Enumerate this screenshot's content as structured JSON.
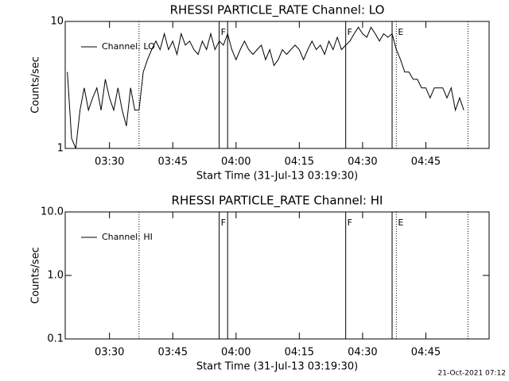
{
  "chart_data": [
    {
      "type": "line",
      "title": "RHESSI PARTICLE_RATE Channel: LO",
      "xlabel": "Start Time (31-Jul-13 03:19:30)",
      "ylabel": "Counts/sec",
      "log_y": true,
      "ylim": [
        1,
        10
      ],
      "yticks": [
        1,
        10
      ],
      "xlim": [
        "03:19:30",
        "05:00"
      ],
      "xticks": [
        "03:30",
        "03:45",
        "04:00",
        "04:15",
        "04:30",
        "04:45"
      ],
      "legend": "upper left",
      "x": [
        "03:20",
        "03:21",
        "03:22",
        "03:23",
        "03:24",
        "03:25",
        "03:26",
        "03:27",
        "03:28",
        "03:29",
        "03:30",
        "03:31",
        "03:32",
        "03:33",
        "03:34",
        "03:35",
        "03:36",
        "03:37",
        "03:38",
        "03:39",
        "03:40",
        "03:41",
        "03:42",
        "03:43",
        "03:44",
        "03:45",
        "03:46",
        "03:47",
        "03:48",
        "03:49",
        "03:50",
        "03:51",
        "03:52",
        "03:53",
        "03:54",
        "03:55",
        "03:56",
        "03:57",
        "03:58",
        "03:59",
        "04:00",
        "04:01",
        "04:02",
        "04:03",
        "04:04",
        "04:05",
        "04:06",
        "04:07",
        "04:08",
        "04:09",
        "04:10",
        "04:11",
        "04:12",
        "04:13",
        "04:14",
        "04:15",
        "04:16",
        "04:17",
        "04:18",
        "04:19",
        "04:20",
        "04:21",
        "04:22",
        "04:23",
        "04:24",
        "04:25",
        "04:26",
        "04:27",
        "04:28",
        "04:29",
        "04:30",
        "04:31",
        "04:32",
        "04:33",
        "04:34",
        "04:35",
        "04:36",
        "04:37",
        "04:38",
        "04:39",
        "04:40",
        "04:41",
        "04:42",
        "04:43",
        "04:44",
        "04:45",
        "04:46",
        "04:47",
        "04:48",
        "04:49",
        "04:50",
        "04:51",
        "04:52",
        "04:53",
        "04:54"
      ],
      "series": [
        {
          "name": "Channel: LO",
          "color": "#000000",
          "values": [
            4,
            1.2,
            1,
            2,
            3,
            2,
            2.5,
            3,
            2,
            3.5,
            2.5,
            2,
            3,
            2,
            1.5,
            3,
            2,
            2,
            4,
            5,
            6,
            7,
            6,
            8,
            6,
            7,
            5.5,
            8,
            6.5,
            7,
            6,
            5.5,
            7,
            6,
            8,
            6,
            7,
            6.5,
            8,
            6,
            5,
            6,
            7,
            6,
            5.5,
            6,
            6.5,
            5,
            6,
            4.5,
            5,
            6,
            5.5,
            6,
            6.5,
            6,
            5,
            6,
            7,
            6,
            6.5,
            5.5,
            7,
            6,
            7.5,
            6,
            6.5,
            7,
            8,
            9,
            8,
            7.5,
            9,
            8,
            7,
            8,
            7.5,
            8,
            6,
            5,
            4,
            4,
            3.5,
            3.5,
            3,
            3,
            2.5,
            3,
            3,
            3,
            2.5,
            3,
            2,
            2.5,
            2
          ]
        }
      ],
      "flags": [
        {
          "x": "03:37",
          "style": "dotted"
        },
        {
          "x": "03:56",
          "style": "solid",
          "label": "F"
        },
        {
          "x": "03:58",
          "style": "solid"
        },
        {
          "x": "04:26",
          "style": "solid",
          "label": "F"
        },
        {
          "x": "04:37",
          "style": "solid"
        },
        {
          "x": "04:38",
          "style": "dotted",
          "label": "E"
        },
        {
          "x": "04:55",
          "style": "dotted"
        }
      ]
    },
    {
      "type": "line",
      "title": "RHESSI PARTICLE_RATE Channel: HI",
      "xlabel": "Start Time (31-Jul-13 03:19:30)",
      "ylabel": "Counts/sec",
      "log_y": true,
      "ylim": [
        0.1,
        10
      ],
      "yticks": [
        {
          "value": 0.1,
          "label": "0.1"
        },
        {
          "value": 1,
          "label": "1.0"
        },
        {
          "value": 10,
          "label": "10.0"
        }
      ],
      "xlim": [
        "03:19:30",
        "05:00"
      ],
      "xticks": [
        "03:30",
        "03:45",
        "04:00",
        "04:15",
        "04:30",
        "04:45"
      ],
      "legend": "upper left",
      "x": [],
      "series": [
        {
          "name": "Channel: HI",
          "color": "#000000",
          "values": []
        }
      ],
      "flags": [
        {
          "x": "03:37",
          "style": "dotted"
        },
        {
          "x": "03:56",
          "style": "solid",
          "label": "F"
        },
        {
          "x": "03:58",
          "style": "solid"
        },
        {
          "x": "04:26",
          "style": "solid",
          "label": "F"
        },
        {
          "x": "04:37",
          "style": "solid"
        },
        {
          "x": "04:38",
          "style": "dotted",
          "label": "E"
        },
        {
          "x": "04:55",
          "style": "dotted"
        }
      ]
    }
  ],
  "footer": "21-Oct-2021 07:12"
}
